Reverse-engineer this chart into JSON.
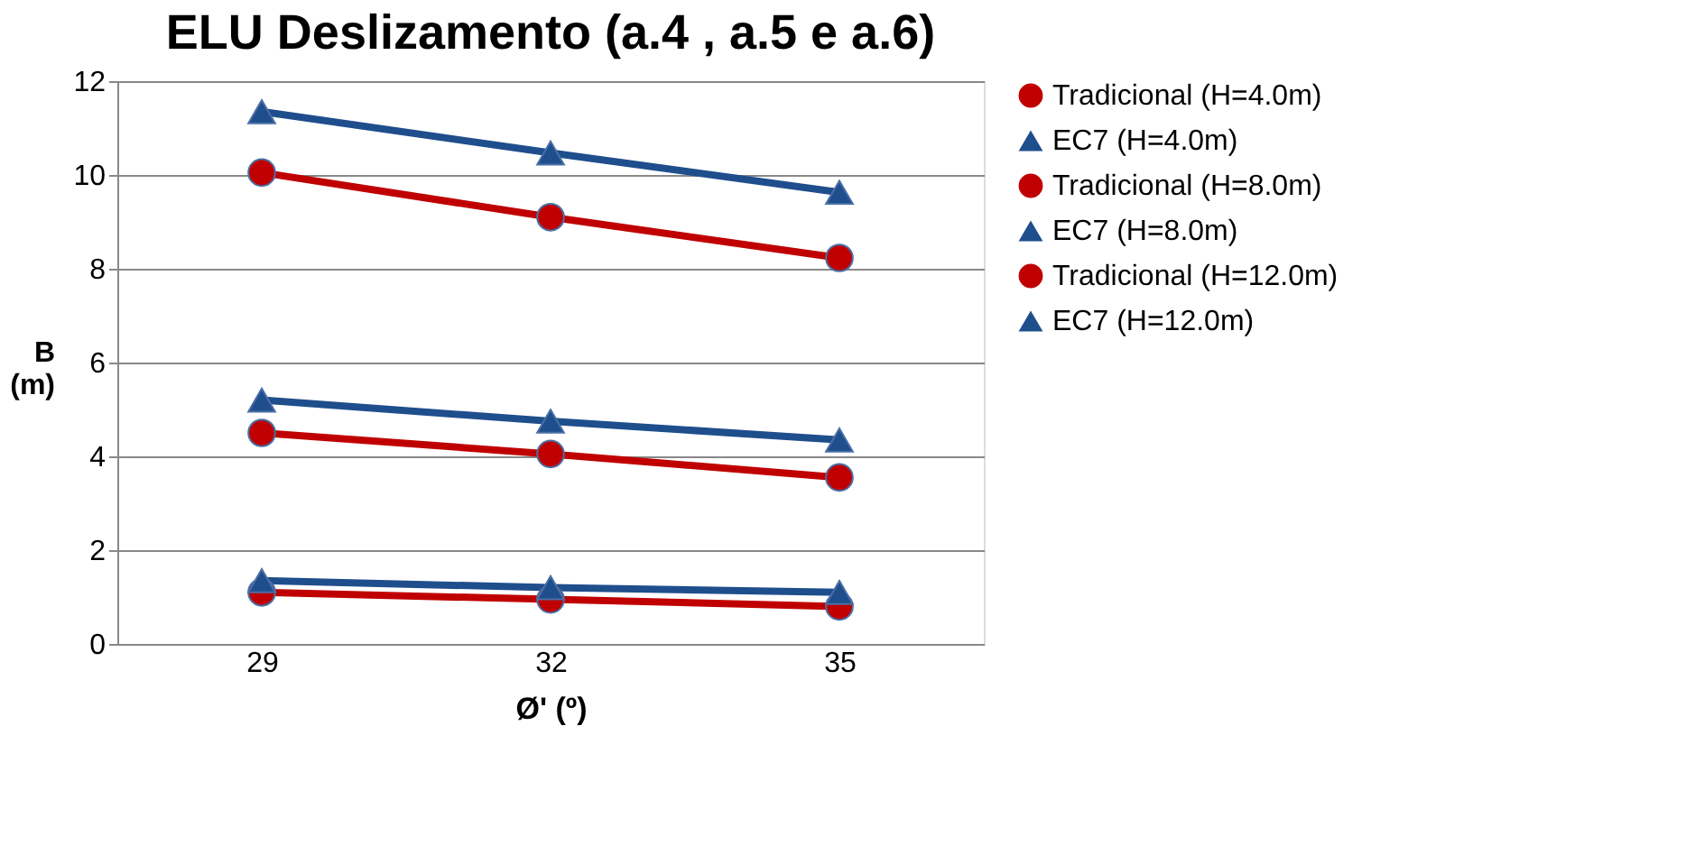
{
  "chart_data": {
    "type": "line",
    "title": "ELU Deslizamento (a.4 , a.5 e a.6)",
    "xlabel": "Ø' (º)",
    "ylabel": "B (m)",
    "categories": [
      "29",
      "32",
      "35"
    ],
    "series": [
      {
        "name": "Tradicional (H=4.0m)",
        "color": "#c00000",
        "marker": "circle",
        "values": [
          1.1,
          0.95,
          0.8
        ]
      },
      {
        "name": "EC7 (H=4.0m)",
        "color": "#1f4e8c",
        "marker": "triangle",
        "values": [
          1.35,
          1.2,
          1.1
        ]
      },
      {
        "name": "Tradicional (H=8.0m)",
        "color": "#c00000",
        "marker": "circle",
        "values": [
          4.5,
          4.05,
          3.55
        ]
      },
      {
        "name": "EC7 (H=8.0m)",
        "color": "#1f4e8c",
        "marker": "triangle",
        "values": [
          5.2,
          4.75,
          4.35
        ]
      },
      {
        "name": "Tradicional (H=12.0m)",
        "color": "#c00000",
        "marker": "circle",
        "values": [
          10.05,
          9.1,
          8.23
        ]
      },
      {
        "name": "EC7 (H=12.0m)",
        "color": "#1f4e8c",
        "marker": "triangle",
        "values": [
          11.35,
          10.47,
          9.63
        ]
      }
    ],
    "ylim": [
      0,
      12
    ],
    "yticks": [
      0,
      2,
      4,
      6,
      8,
      10,
      12
    ],
    "grid": "y",
    "legend": "right"
  }
}
